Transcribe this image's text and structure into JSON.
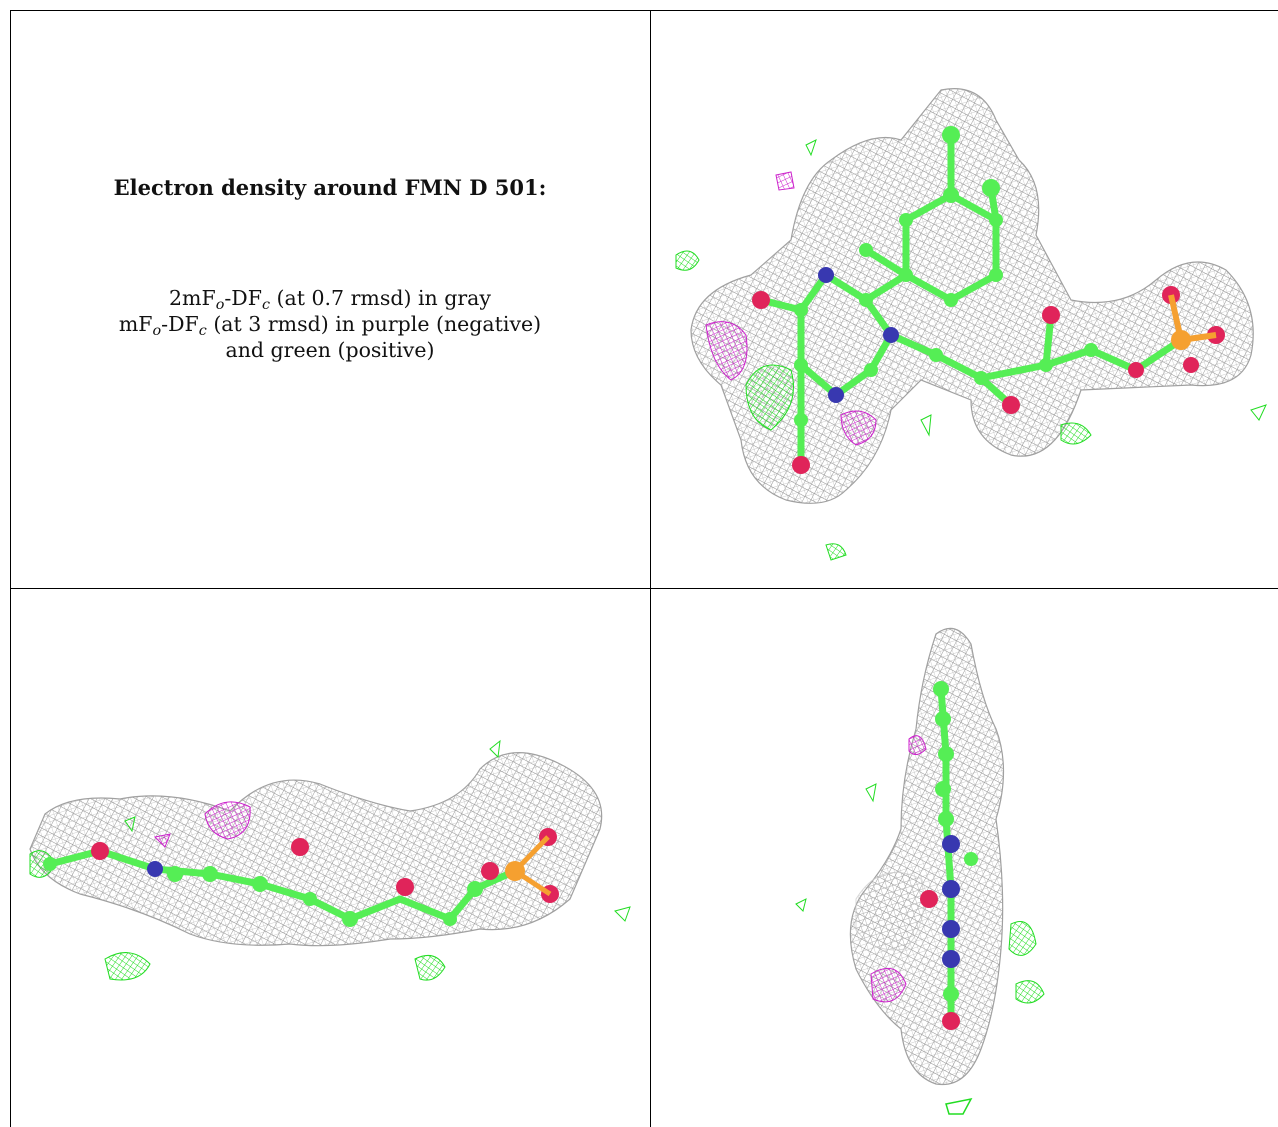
{
  "caption": {
    "title": "Electron density around FMN D 501:",
    "line1_a": "2mF",
    "line1_sub_o": "o",
    "line1_b": "-DF",
    "line1_sub_c": "c",
    "line1_c": " (at 0.7 rmsd) in gray",
    "line2_a": "mF",
    "line2_sub_o": "o",
    "line2_b": "-DF",
    "line2_sub_c": "c",
    "line2_c": " (at 3 rmsd) in purple (negative)",
    "line3": "and green (positive)"
  },
  "colors": {
    "mesh_2fofc": "#9a9a9a",
    "difference_positive": "#33e033",
    "difference_negative": "#cc22cc",
    "carbon": "#55ee55",
    "nitrogen": "#3838b0",
    "oxygen": "#e0245a",
    "phosphorus": "#f5a030",
    "border": "#000000"
  },
  "views": [
    {
      "id": "top-view"
    },
    {
      "id": "side-view"
    },
    {
      "id": "end-on-view"
    }
  ]
}
